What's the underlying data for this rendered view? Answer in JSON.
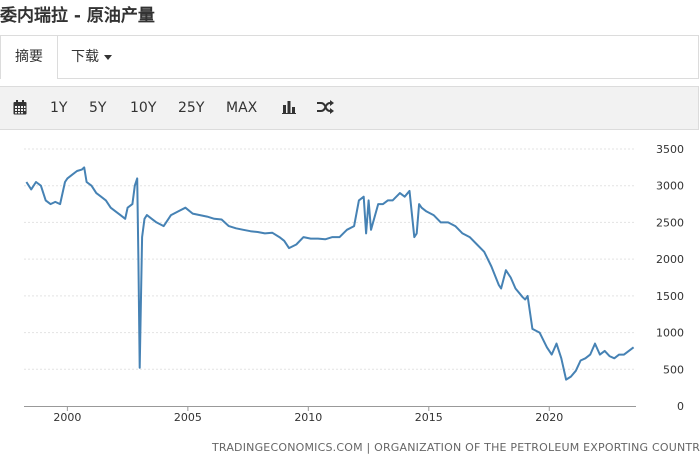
{
  "page": {
    "title": "委内瑞拉 - 原油产量"
  },
  "tabs": {
    "summary": "摘要",
    "download": "下载"
  },
  "toolbar": {
    "calendar_icon": "calendar-icon",
    "ranges": [
      "1Y",
      "5Y",
      "10Y",
      "25Y",
      "MAX"
    ],
    "bar_chart_icon": "bar-chart-icon",
    "shuffle_icon": "shuffle-icon"
  },
  "chart_data": {
    "type": "line",
    "title": "",
    "xlabel": "",
    "ylabel": "",
    "xlim": [
      1998.2,
      2023.6
    ],
    "ylim": [
      0,
      3500
    ],
    "y_axis_side": "right",
    "y_ticks": [
      "3500",
      "3000",
      "2500",
      "2000",
      "1500",
      "1000",
      "500",
      "0"
    ],
    "x_ticks": [
      "2000",
      "2005",
      "2010",
      "2015",
      "2020"
    ],
    "grid": "horizontal dashed",
    "line_color": "#4682b4",
    "series": [
      {
        "name": "",
        "x": [
          1998.3,
          1998.5,
          1998.7,
          1998.9,
          1999.1,
          1999.3,
          1999.5,
          1999.7,
          1999.9,
          2000.0,
          2000.2,
          2000.4,
          2000.6,
          2000.7,
          2000.8,
          2001.0,
          2001.2,
          2001.4,
          2001.6,
          2001.8,
          2002.0,
          2002.2,
          2002.4,
          2002.5,
          2002.7,
          2002.8,
          2002.9,
          2002.95,
          2003.0,
          2003.1,
          2003.2,
          2003.3,
          2003.5,
          2003.7,
          2004.0,
          2004.3,
          2004.6,
          2004.9,
          2005.2,
          2005.5,
          2005.8,
          2006.1,
          2006.4,
          2006.7,
          2007.0,
          2007.3,
          2007.6,
          2007.9,
          2008.2,
          2008.5,
          2008.8,
          2009.0,
          2009.2,
          2009.5,
          2009.8,
          2010.1,
          2010.4,
          2010.7,
          2011.0,
          2011.3,
          2011.6,
          2011.9,
          2012.1,
          2012.3,
          2012.4,
          2012.5,
          2012.6,
          2012.9,
          2013.1,
          2013.3,
          2013.5,
          2013.8,
          2014.0,
          2014.2,
          2014.4,
          2014.5,
          2014.6,
          2014.7,
          2014.9,
          2015.2,
          2015.5,
          2015.8,
          2016.1,
          2016.4,
          2016.7,
          2017.0,
          2017.3,
          2017.6,
          2017.9,
          2018.0,
          2018.2,
          2018.4,
          2018.6,
          2018.9,
          2019.0,
          2019.1,
          2019.3,
          2019.6,
          2019.9,
          2020.1,
          2020.3,
          2020.5,
          2020.7,
          2020.9,
          2021.1,
          2021.3,
          2021.5,
          2021.7,
          2021.9,
          2022.1,
          2022.3,
          2022.5,
          2022.7,
          2022.9,
          2023.1,
          2023.3,
          2023.5
        ],
        "values": [
          3050,
          2950,
          3050,
          3000,
          2800,
          2750,
          2780,
          2750,
          3050,
          3100,
          3150,
          3200,
          3220,
          3250,
          3050,
          3000,
          2900,
          2850,
          2800,
          2700,
          2650,
          2600,
          2550,
          2700,
          2750,
          3000,
          3100,
          2000,
          520,
          2300,
          2550,
          2600,
          2550,
          2500,
          2450,
          2600,
          2650,
          2700,
          2620,
          2600,
          2580,
          2550,
          2540,
          2450,
          2420,
          2400,
          2380,
          2370,
          2350,
          2360,
          2300,
          2250,
          2150,
          2200,
          2300,
          2280,
          2280,
          2270,
          2300,
          2300,
          2400,
          2450,
          2800,
          2850,
          2350,
          2800,
          2400,
          2750,
          2750,
          2800,
          2800,
          2900,
          2850,
          2930,
          2300,
          2350,
          2750,
          2700,
          2650,
          2600,
          2500,
          2500,
          2450,
          2350,
          2300,
          2200,
          2100,
          1900,
          1650,
          1600,
          1850,
          1750,
          1600,
          1480,
          1450,
          1500,
          1050,
          1000,
          800,
          700,
          850,
          650,
          360,
          400,
          480,
          620,
          650,
          700,
          850,
          700,
          750,
          680,
          650,
          700,
          700,
          750,
          800
        ]
      }
    ]
  },
  "footer": {
    "source": "TRADINGECONOMICS.COM | ORGANIZATION OF THE PETROLEUM EXPORTING COUNTRIES"
  }
}
